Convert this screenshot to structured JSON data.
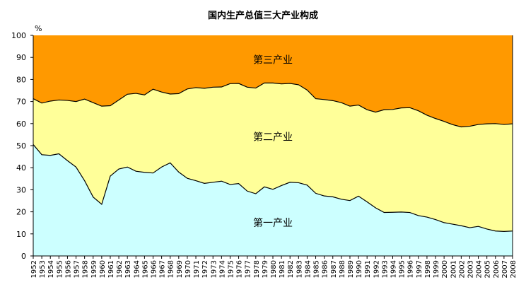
{
  "chart_data": {
    "type": "area",
    "stacked": true,
    "title": "国内生产总值三大产业构成",
    "ylabel": "%",
    "ylim": [
      0,
      100
    ],
    "yticks": [
      0,
      10,
      20,
      30,
      40,
      50,
      60,
      70,
      80,
      90,
      100
    ],
    "grid": false,
    "x": [
      1952,
      1953,
      1954,
      1955,
      1956,
      1957,
      1958,
      1959,
      1960,
      1961,
      1962,
      1963,
      1964,
      1965,
      1966,
      1967,
      1968,
      1969,
      1970,
      1971,
      1972,
      1973,
      1974,
      1975,
      1976,
      1977,
      1978,
      1979,
      1980,
      1981,
      1982,
      1983,
      1984,
      1985,
      1986,
      1987,
      1988,
      1989,
      1990,
      1991,
      1992,
      1993,
      1994,
      1995,
      1996,
      1997,
      1998,
      1999,
      2000,
      2001,
      2002,
      2003,
      2004,
      2005,
      2006,
      2007,
      2008
    ],
    "series": [
      {
        "name": "第一产业",
        "color": "#CCFFFF",
        "values": [
          50.5,
          45.9,
          45.6,
          46.3,
          43.2,
          40.3,
          34.1,
          26.7,
          23.4,
          36.2,
          39.4,
          40.3,
          38.4,
          37.9,
          37.6,
          40.3,
          42.2,
          38.0,
          35.2,
          34.1,
          32.9,
          33.4,
          33.9,
          32.4,
          32.8,
          29.4,
          28.2,
          31.3,
          30.2,
          31.9,
          33.4,
          33.2,
          32.1,
          28.4,
          27.2,
          26.8,
          25.7,
          25.1,
          27.1,
          24.5,
          21.8,
          19.7,
          19.8,
          19.9,
          19.7,
          18.3,
          17.6,
          16.5,
          15.1,
          14.4,
          13.7,
          12.8,
          13.4,
          12.2,
          11.3,
          11.1,
          11.3
        ]
      },
      {
        "name": "第二产业",
        "color": "#FFFF99",
        "values": [
          20.8,
          23.4,
          24.6,
          24.4,
          27.3,
          29.7,
          37.0,
          42.8,
          44.5,
          31.9,
          31.3,
          33.0,
          35.3,
          35.1,
          38.0,
          34.0,
          31.2,
          35.6,
          40.5,
          42.2,
          43.1,
          43.1,
          42.7,
          45.7,
          45.4,
          47.1,
          47.9,
          47.1,
          48.2,
          46.1,
          44.8,
          44.4,
          43.1,
          42.9,
          43.7,
          43.6,
          43.8,
          42.8,
          41.3,
          41.8,
          43.4,
          46.6,
          46.6,
          47.2,
          47.5,
          47.5,
          46.2,
          45.8,
          45.9,
          45.1,
          44.8,
          46.0,
          46.2,
          47.7,
          48.7,
          48.5,
          48.6
        ]
      },
      {
        "name": "第三产业",
        "color": "#FF9900",
        "values": [
          28.7,
          30.7,
          29.8,
          29.3,
          29.5,
          30.0,
          28.9,
          30.5,
          32.1,
          31.9,
          29.3,
          26.7,
          26.3,
          27.0,
          24.4,
          25.7,
          26.6,
          26.4,
          24.3,
          23.7,
          24.0,
          23.5,
          23.4,
          21.9,
          21.8,
          23.5,
          23.9,
          21.6,
          21.6,
          22.0,
          21.8,
          22.4,
          24.8,
          28.7,
          29.1,
          29.6,
          30.5,
          32.1,
          31.6,
          33.7,
          34.8,
          33.7,
          33.6,
          32.9,
          32.8,
          34.2,
          36.2,
          37.7,
          39.0,
          40.5,
          41.5,
          41.2,
          40.4,
          40.1,
          40.0,
          40.4,
          40.1
        ]
      }
    ]
  }
}
